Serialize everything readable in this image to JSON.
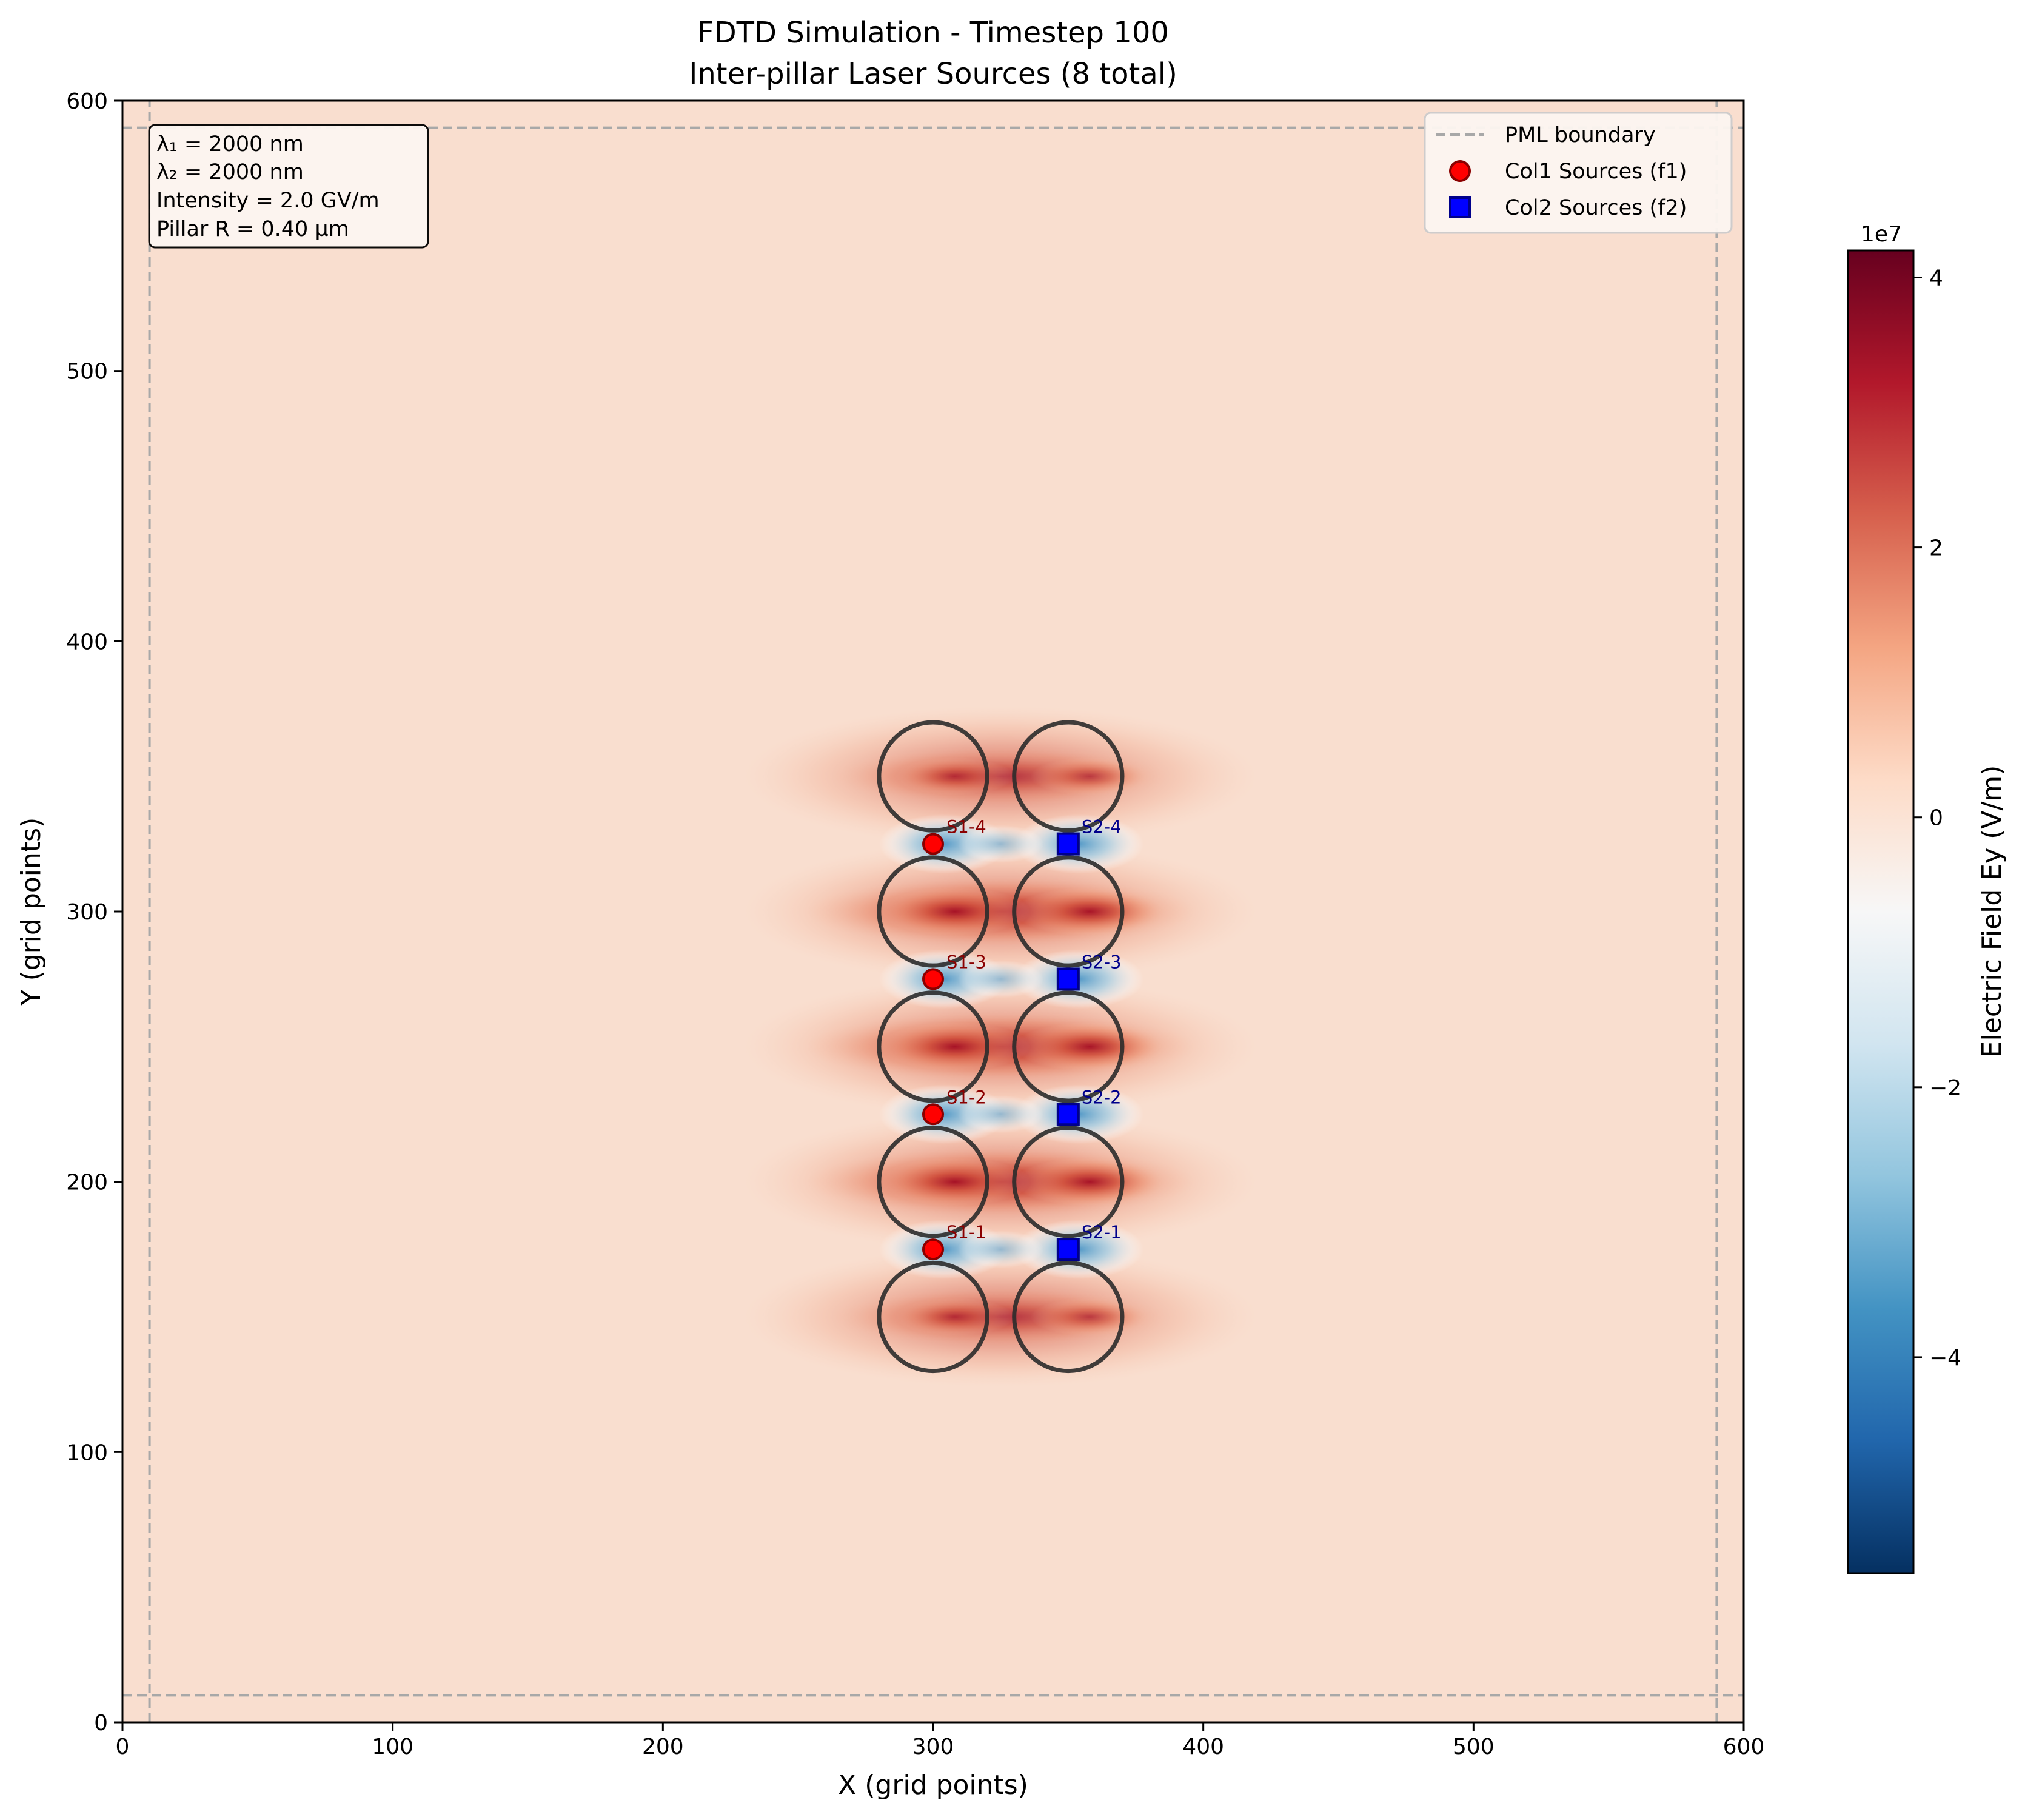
{
  "chart_data": {
    "type": "heatmap",
    "title": "FDTD Simulation - Timestep 100",
    "subtitle": "Inter-pillar Laser Sources (8 total)",
    "xlabel": "X (grid points)",
    "ylabel": "Y (grid points)",
    "xlim": [
      0,
      600
    ],
    "ylim": [
      0,
      600
    ],
    "xticks": [
      0,
      100,
      200,
      300,
      400,
      500,
      600
    ],
    "yticks": [
      0,
      100,
      200,
      300,
      400,
      500,
      600
    ],
    "grid": false,
    "legend_position": "top-right",
    "pml_boundary": {
      "label": "PML boundary",
      "thickness": 10
    },
    "info_box": {
      "lines": [
        "λ₁ = 2000 nm",
        "λ₂ = 2000 nm",
        "Intensity = 2.0 GV/m",
        "Pillar R = 0.40 µm"
      ]
    },
    "pillars": {
      "radius": 20,
      "centers": [
        [
          300,
          150
        ],
        [
          300,
          200
        ],
        [
          300,
          250
        ],
        [
          300,
          300
        ],
        [
          300,
          350
        ],
        [
          350,
          150
        ],
        [
          350,
          200
        ],
        [
          350,
          250
        ],
        [
          350,
          300
        ],
        [
          350,
          350
        ]
      ]
    },
    "source_series": [
      {
        "name": "Col1 Sources (f1)",
        "marker": "circle",
        "color": "#ff0000",
        "edge": "#8b0000",
        "label_color": "#8b0000",
        "points": [
          {
            "label": "S1-1",
            "x": 300,
            "y": 175
          },
          {
            "label": "S1-2",
            "x": 300,
            "y": 225
          },
          {
            "label": "S1-3",
            "x": 300,
            "y": 275
          },
          {
            "label": "S1-4",
            "x": 300,
            "y": 325
          }
        ]
      },
      {
        "name": "Col2 Sources (f2)",
        "marker": "square",
        "color": "#0000ff",
        "edge": "#00008b",
        "label_color": "#00008b",
        "points": [
          {
            "label": "S2-1",
            "x": 350,
            "y": 175
          },
          {
            "label": "S2-2",
            "x": 350,
            "y": 225
          },
          {
            "label": "S2-3",
            "x": 350,
            "y": 275
          },
          {
            "label": "S2-4",
            "x": 350,
            "y": 325
          }
        ]
      }
    ],
    "colorbar": {
      "label": "Electric Field Ey (V/m)",
      "multiplier": "1e7",
      "range": [
        -5.6,
        4.2
      ],
      "ticks": [
        4,
        2,
        0,
        -2,
        -4
      ],
      "tick_labels": [
        "4",
        "2",
        "0",
        "−2",
        "−4"
      ],
      "colormap": "RdBu_r",
      "background_value": 0.55
    },
    "field_bands": {
      "positive_rows_y": [
        150,
        200,
        250,
        300,
        350
      ],
      "negative_rows_y": [
        175,
        225,
        275,
        325
      ],
      "positive_peak": 3.6,
      "negative_peak": -2.6
    }
  }
}
